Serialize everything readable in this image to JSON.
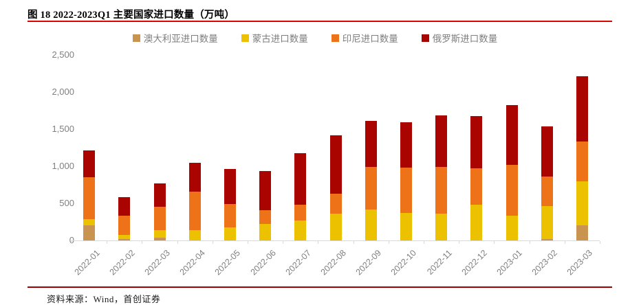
{
  "page": {
    "title": "图 18 2022-2023Q1 主要国家进口数量（万吨）",
    "source_note": "资料来源：Wind，首创证券"
  },
  "colors": {
    "title_rule": "#d80600",
    "footer_rule": "#9e0000",
    "axis_text": "#7f7f7f",
    "axis_line": "#d9d9d9"
  },
  "chart_data": {
    "type": "bar",
    "stacked": true,
    "title": "图 18 2022-2023Q1 主要国家进口数量（万吨）",
    "categories": [
      "2022-01",
      "2022-02",
      "2022-03",
      "2022-04",
      "2022-05",
      "2022-06",
      "2022-07",
      "2022-08",
      "2022-09",
      "2022-10",
      "2022-11",
      "2022-12",
      "2023-01",
      "2023-02",
      "2023-03"
    ],
    "series": [
      {
        "name": "澳大利亚进口数量",
        "color": "#c8944f",
        "values": [
          200,
          15,
          35,
          0,
          0,
          0,
          0,
          0,
          0,
          0,
          0,
          0,
          0,
          20,
          205
        ]
      },
      {
        "name": "蒙古进口数量",
        "color": "#ebc100",
        "values": [
          85,
          60,
          105,
          135,
          175,
          225,
          270,
          360,
          420,
          370,
          365,
          480,
          335,
          445,
          590
        ]
      },
      {
        "name": "印尼进口数量",
        "color": "#ed7218",
        "values": [
          570,
          255,
          310,
          525,
          315,
          180,
          210,
          270,
          570,
          615,
          630,
          495,
          685,
          400,
          540
        ]
      },
      {
        "name": "俄罗斯进口数量",
        "color": "#a90400",
        "values": [
          360,
          255,
          315,
          385,
          475,
          530,
          695,
          790,
          620,
          610,
          695,
          700,
          805,
          675,
          880
        ]
      }
    ],
    "totals": [
      1215,
      585,
      765,
      1045,
      965,
      935,
      1175,
      1420,
      1610,
      1595,
      1690,
      1675,
      1825,
      1540,
      2215
    ],
    "xlabel": "",
    "ylabel": "",
    "ylim": [
      0,
      2500
    ],
    "yticks": [
      0,
      500,
      1000,
      1500,
      2000,
      2500
    ],
    "ytick_labels": [
      "0",
      "500",
      "1,000",
      "1,500",
      "2,000",
      "2,500"
    ],
    "legend_position": "top",
    "grid": false
  }
}
